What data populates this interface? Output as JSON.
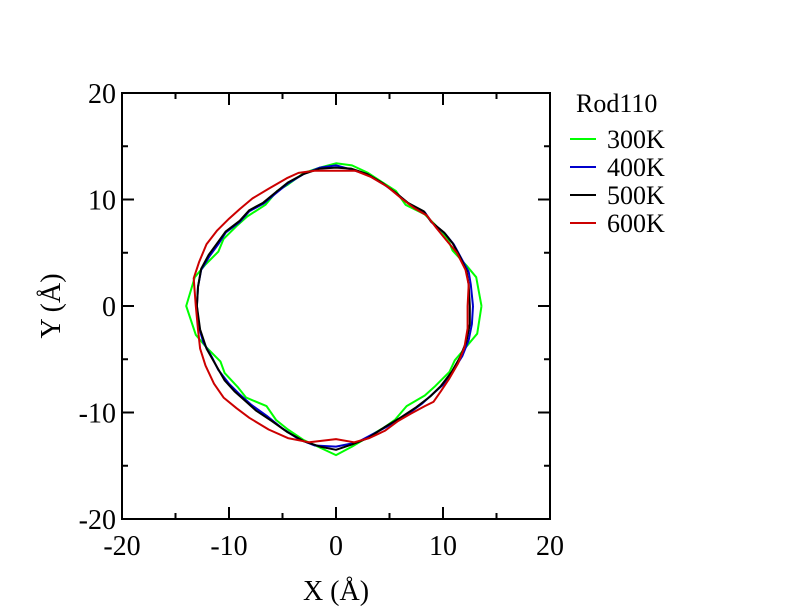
{
  "chart_data": {
    "type": "line",
    "title": "",
    "xlabel": "X (Å)",
    "ylabel": "Y (Å)",
    "xlim": [
      -20,
      20
    ],
    "ylim": [
      -20,
      20
    ],
    "x_ticks": [
      -20,
      -10,
      0,
      10,
      20
    ],
    "y_ticks": [
      -20,
      -10,
      0,
      10,
      20
    ],
    "x_tick_labels": [
      "-20",
      "-10",
      "0",
      "10",
      "20"
    ],
    "y_tick_labels": [
      "-20",
      "-10",
      "0",
      "10",
      "20"
    ],
    "grid": false,
    "legend": {
      "title": "Rod110",
      "placement": "outside-right"
    },
    "series": [
      {
        "name": "300K",
        "color": "#00ff00",
        "points": [
          [
            13.6,
            0
          ],
          [
            13.1,
            2.7
          ],
          [
            12.2,
            3.8
          ],
          [
            10.9,
            5.2
          ],
          [
            10.5,
            6.2
          ],
          [
            9.3,
            7.6
          ],
          [
            8.3,
            8.6
          ],
          [
            6.5,
            9.5
          ],
          [
            5.6,
            10.8
          ],
          [
            4.5,
            11.5
          ],
          [
            3.0,
            12.5
          ],
          [
            1.5,
            13.2
          ],
          [
            0,
            13.4
          ],
          [
            -1.5,
            13.0
          ],
          [
            -3.0,
            12.5
          ],
          [
            -4.5,
            11.4
          ],
          [
            -5.5,
            10.8
          ],
          [
            -6.6,
            9.5
          ],
          [
            -8.3,
            8.4
          ],
          [
            -9.2,
            7.6
          ],
          [
            -10.5,
            6.3
          ],
          [
            -11.0,
            5.1
          ],
          [
            -12.2,
            3.9
          ],
          [
            -13.2,
            2.7
          ],
          [
            -14.0,
            0
          ],
          [
            -13.1,
            -2.7
          ],
          [
            -12.1,
            -3.9
          ],
          [
            -10.8,
            -5.2
          ],
          [
            -10.4,
            -6.3
          ],
          [
            -9.2,
            -7.6
          ],
          [
            -8.4,
            -8.6
          ],
          [
            -6.5,
            -9.4
          ],
          [
            -5.6,
            -10.7
          ],
          [
            -4.5,
            -11.6
          ],
          [
            -3.0,
            -12.6
          ],
          [
            -1.5,
            -13.3
          ],
          [
            0,
            -14.0
          ],
          [
            1.5,
            -13.2
          ],
          [
            3.0,
            -12.3
          ],
          [
            4.5,
            -11.4
          ],
          [
            5.5,
            -10.7
          ],
          [
            6.6,
            -9.4
          ],
          [
            8.3,
            -8.4
          ],
          [
            9.2,
            -7.6
          ],
          [
            10.6,
            -6.2
          ],
          [
            11.1,
            -5.1
          ],
          [
            12.2,
            -3.8
          ],
          [
            13.2,
            -2.6
          ],
          [
            13.6,
            0
          ]
        ]
      },
      {
        "name": "400K",
        "color": "#0000cc",
        "points": [
          [
            12.8,
            0
          ],
          [
            12.6,
            2.0
          ],
          [
            12.4,
            3.2
          ],
          [
            11.7,
            4.5
          ],
          [
            11.0,
            5.8
          ],
          [
            10.2,
            6.8
          ],
          [
            9.0,
            7.8
          ],
          [
            8.3,
            8.8
          ],
          [
            6.8,
            9.6
          ],
          [
            5.6,
            10.6
          ],
          [
            4.5,
            11.4
          ],
          [
            3.0,
            12.3
          ],
          [
            1.5,
            12.8
          ],
          [
            0,
            13.2
          ],
          [
            -1.5,
            13.0
          ],
          [
            -3.0,
            12.4
          ],
          [
            -4.5,
            11.5
          ],
          [
            -5.6,
            10.6
          ],
          [
            -6.8,
            9.6
          ],
          [
            -8.1,
            8.9
          ],
          [
            -9.0,
            7.9
          ],
          [
            -10.3,
            6.9
          ],
          [
            -11.0,
            5.8
          ],
          [
            -11.8,
            4.7
          ],
          [
            -12.6,
            3.4
          ],
          [
            -12.9,
            1.8
          ],
          [
            -13.0,
            0
          ],
          [
            -12.8,
            -2.0
          ],
          [
            -12.4,
            -3.4
          ],
          [
            -11.6,
            -4.8
          ],
          [
            -11.0,
            -6.0
          ],
          [
            -10.0,
            -7.3
          ],
          [
            -9.0,
            -8.3
          ],
          [
            -7.9,
            -9.3
          ],
          [
            -6.5,
            -10.3
          ],
          [
            -5.0,
            -11.5
          ],
          [
            -3.5,
            -12.5
          ],
          [
            -2.0,
            -13.1
          ],
          [
            0,
            -13.2
          ],
          [
            2.0,
            -12.8
          ],
          [
            3.5,
            -12.0
          ],
          [
            5.0,
            -11.2
          ],
          [
            6.5,
            -10.3
          ],
          [
            8.0,
            -9.2
          ],
          [
            9.0,
            -8.3
          ],
          [
            10.0,
            -7.4
          ],
          [
            11.0,
            -6.0
          ],
          [
            11.8,
            -4.7
          ],
          [
            12.4,
            -3.2
          ],
          [
            12.7,
            -1.7
          ],
          [
            12.8,
            0
          ]
        ]
      },
      {
        "name": "500K",
        "color": "#000000",
        "points": [
          [
            12.5,
            0
          ],
          [
            12.4,
            2.0
          ],
          [
            12.2,
            3.3
          ],
          [
            11.6,
            4.6
          ],
          [
            10.9,
            5.9
          ],
          [
            10.1,
            6.9
          ],
          [
            8.9,
            7.9
          ],
          [
            8.2,
            8.9
          ],
          [
            6.7,
            9.7
          ],
          [
            5.5,
            10.7
          ],
          [
            4.4,
            11.5
          ],
          [
            2.9,
            12.4
          ],
          [
            1.4,
            12.9
          ],
          [
            0,
            13.0
          ],
          [
            -1.5,
            12.9
          ],
          [
            -3.0,
            12.4
          ],
          [
            -4.5,
            11.6
          ],
          [
            -5.6,
            10.7
          ],
          [
            -6.8,
            9.7
          ],
          [
            -8.1,
            9.0
          ],
          [
            -9.0,
            8.0
          ],
          [
            -10.3,
            7.0
          ],
          [
            -11.1,
            5.9
          ],
          [
            -11.9,
            4.8
          ],
          [
            -12.6,
            3.5
          ],
          [
            -12.9,
            1.8
          ],
          [
            -13.0,
            0
          ],
          [
            -12.7,
            -2.2
          ],
          [
            -12.1,
            -4.0
          ],
          [
            -11.2,
            -5.6
          ],
          [
            -10.4,
            -7.0
          ],
          [
            -9.5,
            -8.0
          ],
          [
            -8.5,
            -8.9
          ],
          [
            -7.5,
            -9.8
          ],
          [
            -6.0,
            -10.8
          ],
          [
            -4.6,
            -11.8
          ],
          [
            -3.0,
            -12.7
          ],
          [
            -1.5,
            -13.2
          ],
          [
            0,
            -13.5
          ],
          [
            1.5,
            -13.0
          ],
          [
            3.0,
            -12.4
          ],
          [
            4.5,
            -11.4
          ],
          [
            6.0,
            -10.5
          ],
          [
            7.5,
            -9.5
          ],
          [
            8.8,
            -8.5
          ],
          [
            9.8,
            -7.5
          ],
          [
            10.8,
            -6.2
          ],
          [
            11.6,
            -4.8
          ],
          [
            12.2,
            -3.3
          ],
          [
            12.5,
            -1.7
          ],
          [
            12.5,
            0
          ]
        ]
      },
      {
        "name": "600K",
        "color": "#cc0000",
        "points": [
          [
            12.3,
            0
          ],
          [
            12.4,
            2.0
          ],
          [
            12.1,
            3.4
          ],
          [
            11.3,
            5.0
          ],
          [
            10.3,
            6.2
          ],
          [
            9.4,
            7.3
          ],
          [
            8.5,
            8.5
          ],
          [
            7.3,
            9.2
          ],
          [
            6.0,
            10.2
          ],
          [
            4.8,
            11.2
          ],
          [
            3.3,
            12.1
          ],
          [
            1.8,
            12.7
          ],
          [
            0,
            12.7
          ],
          [
            -2.0,
            12.7
          ],
          [
            -3.5,
            12.5
          ],
          [
            -4.6,
            12.0
          ],
          [
            -6.3,
            11.0
          ],
          [
            -7.8,
            10.1
          ],
          [
            -9.0,
            9.1
          ],
          [
            -10.0,
            8.2
          ],
          [
            -11.1,
            7.1
          ],
          [
            -12.1,
            5.8
          ],
          [
            -12.8,
            4.1
          ],
          [
            -13.3,
            2.6
          ],
          [
            -13.1,
            0
          ],
          [
            -12.9,
            -2.2
          ],
          [
            -12.7,
            -4.0
          ],
          [
            -12.2,
            -5.6
          ],
          [
            -11.4,
            -7.3
          ],
          [
            -10.5,
            -8.6
          ],
          [
            -9.3,
            -9.6
          ],
          [
            -8.1,
            -10.5
          ],
          [
            -6.3,
            -11.6
          ],
          [
            -4.5,
            -12.4
          ],
          [
            -2.5,
            -12.8
          ],
          [
            0,
            -12.5
          ],
          [
            1.7,
            -12.8
          ],
          [
            3.1,
            -12.4
          ],
          [
            4.6,
            -11.7
          ],
          [
            5.8,
            -10.8
          ],
          [
            7.0,
            -10.1
          ],
          [
            8.3,
            -9.4
          ],
          [
            9.1,
            -9.0
          ],
          [
            9.8,
            -8.0
          ],
          [
            10.6,
            -6.8
          ],
          [
            11.4,
            -5.4
          ],
          [
            12.0,
            -3.9
          ],
          [
            12.3,
            -2.1
          ],
          [
            12.3,
            0
          ]
        ]
      }
    ]
  }
}
